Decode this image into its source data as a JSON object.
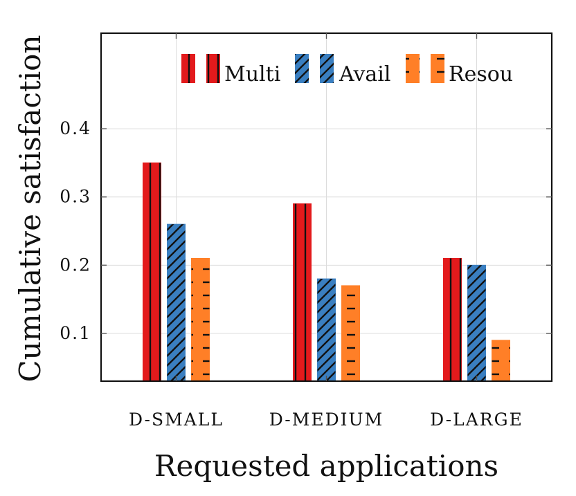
{
  "chart_data": {
    "type": "bar",
    "categories": [
      "D-SMALL",
      "D-MEDIUM",
      "D-LARGE"
    ],
    "series": [
      {
        "name": "Multi",
        "values": [
          0.35,
          0.29,
          0.21
        ],
        "color": "#e31a1c",
        "pattern": "vertical"
      },
      {
        "name": "Avail",
        "values": [
          0.26,
          0.18,
          0.2
        ],
        "color": "#3a7fc1",
        "pattern": "diagonal"
      },
      {
        "name": "Resou",
        "values": [
          0.21,
          0.17,
          0.09
        ],
        "color": "#ff7f27",
        "pattern": "horizontal"
      }
    ],
    "xlabel": "Requested applications",
    "ylabel": "Cumulative satisfaction",
    "yticks": [
      "0.1",
      "0.2",
      "0.3",
      "0.4"
    ],
    "ylim": [
      0.03,
      0.54
    ],
    "grid": true,
    "legend": "top-right"
  }
}
